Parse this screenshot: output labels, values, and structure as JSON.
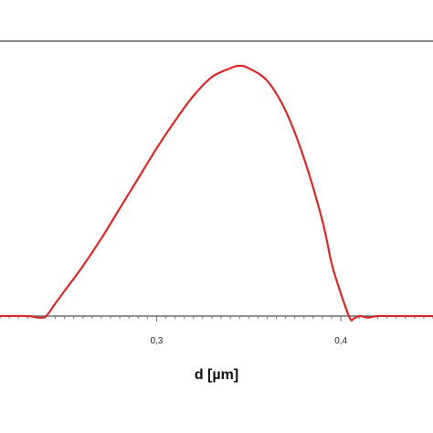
{
  "chart_data": {
    "type": "line",
    "xlabel": "d [µm]",
    "ylabel": "",
    "title": "",
    "xlim": [
      0.215,
      0.45
    ],
    "ylim": [
      0,
      1.0
    ],
    "x_ticks": [
      {
        "value": 0.3,
        "label": "0,3"
      },
      {
        "value": 0.4,
        "label": "0,4"
      }
    ],
    "minor_tick_step": 0.005,
    "series": [
      {
        "color": "#d62a2a",
        "x": [
          0.215,
          0.23,
          0.236,
          0.24,
          0.245,
          0.25,
          0.26,
          0.27,
          0.28,
          0.29,
          0.3,
          0.31,
          0.32,
          0.33,
          0.34,
          0.345,
          0.35,
          0.36,
          0.37,
          0.38,
          0.39,
          0.395,
          0.4,
          0.405,
          0.407,
          0.41,
          0.415,
          0.42,
          0.43,
          0.45
        ],
        "y": [
          0.0,
          0.0,
          -0.006,
          0.0,
          0.05,
          0.1,
          0.2,
          0.31,
          0.43,
          0.55,
          0.67,
          0.78,
          0.88,
          0.955,
          0.99,
          1.0,
          0.99,
          0.94,
          0.82,
          0.63,
          0.38,
          0.21,
          0.09,
          -0.01,
          -0.01,
          0.0,
          -0.006,
          0.0,
          0.0,
          0.0
        ]
      }
    ],
    "colors": {
      "curve": "#d62a2a",
      "axis": "#6e6e6e",
      "top_line": "#8a8a8a"
    }
  }
}
